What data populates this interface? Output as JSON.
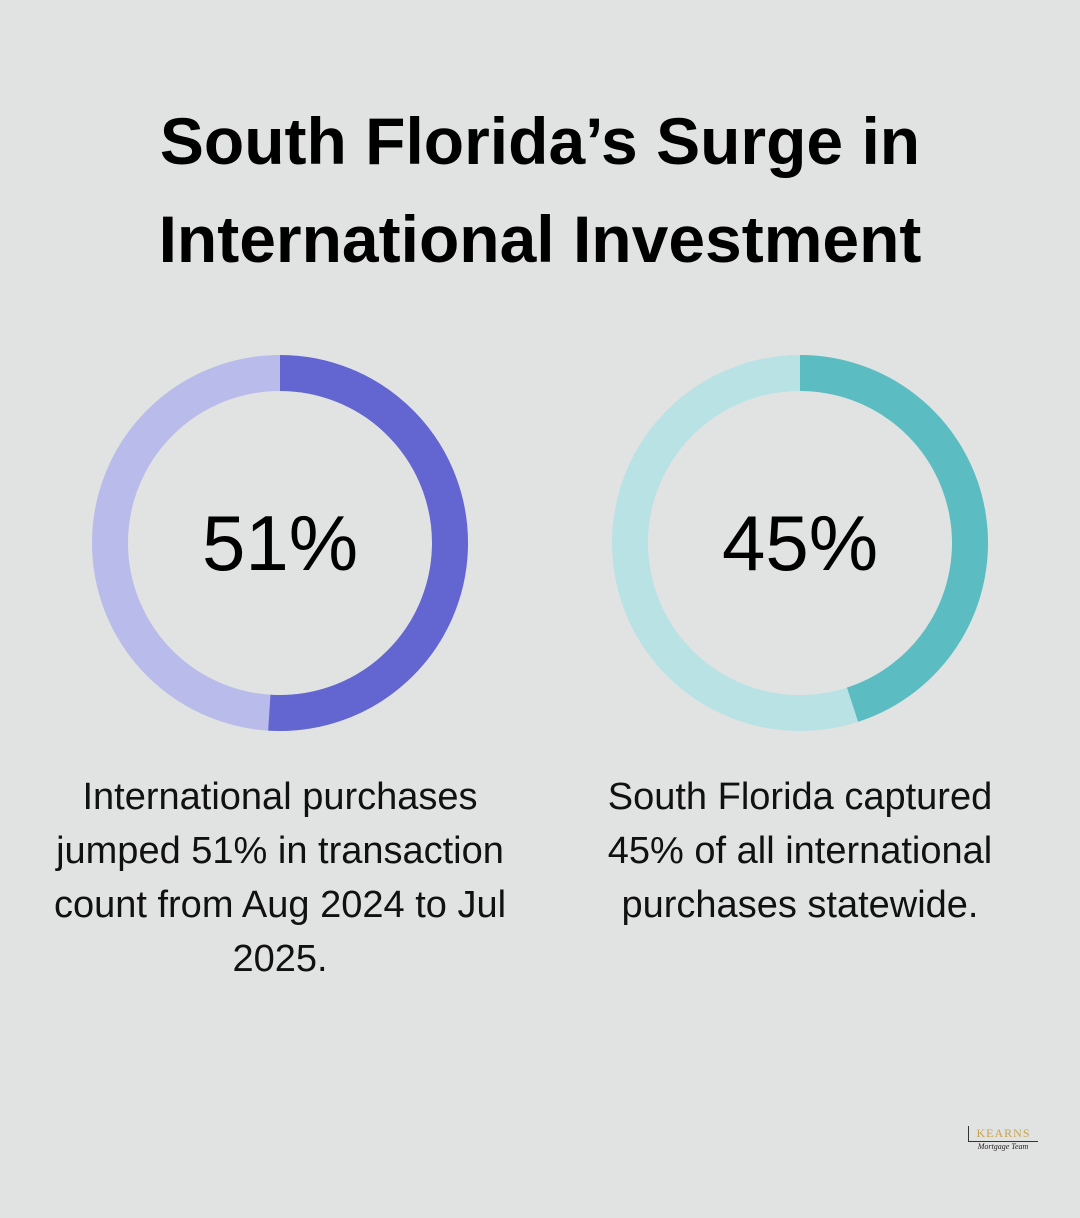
{
  "title": "South Florida’s Surge in International Investment",
  "chart_data": [
    {
      "type": "donut",
      "values": [
        51
      ],
      "value_labels": [
        "51%"
      ],
      "color": "#6366d1",
      "track_color": "#b9bbea",
      "caption": "International purchases jumped 51% in transaction count from Aug 2024 to Jul 2025."
    },
    {
      "type": "donut",
      "values": [
        45
      ],
      "value_labels": [
        "45%"
      ],
      "color": "#5bbcc1",
      "track_color": "#b9e2e5",
      "caption": "South Florida captured 45% of all international purchases statewide."
    }
  ],
  "logo": {
    "name": "KEARNS",
    "tagline": "Mortgage Team"
  }
}
